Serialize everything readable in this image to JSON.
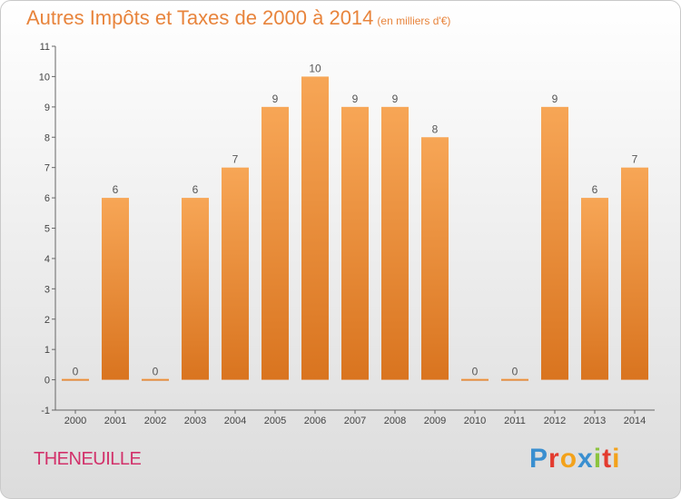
{
  "page": {
    "title": "Autres Impôts et Taxes de 2000 à 2014",
    "unit": "(en milliers d'€)",
    "commune": "THENEUILLE",
    "logo_letters": [
      "P",
      "r",
      "o",
      "x",
      "i",
      "t",
      "i"
    ]
  },
  "chart_data": {
    "type": "bar",
    "title": "Autres Impôts et Taxes de 2000 à 2014",
    "subtitle": "(en milliers d'€)",
    "xlabel": "",
    "ylabel": "",
    "categories": [
      "2000",
      "2001",
      "2002",
      "2003",
      "2004",
      "2005",
      "2006",
      "2007",
      "2008",
      "2009",
      "2010",
      "2011",
      "2012",
      "2013",
      "2014"
    ],
    "values": [
      0,
      6,
      0,
      6,
      7,
      9,
      10,
      9,
      9,
      8,
      0,
      0,
      9,
      6,
      7
    ],
    "data_labels": [
      "0",
      "6",
      "0",
      "6",
      "7",
      "9",
      "10",
      "9",
      "9",
      "8",
      "0",
      "0",
      "9",
      "6",
      "7"
    ],
    "yticks": [
      -1,
      0,
      1,
      2,
      3,
      4,
      5,
      6,
      7,
      8,
      9,
      10,
      11
    ],
    "ytick_labels": [
      "-1",
      "0",
      "1",
      "2",
      "3",
      "4",
      "5",
      "6",
      "7",
      "8",
      "9",
      "10",
      "11"
    ],
    "ylim": [
      -1,
      11
    ],
    "grid": false,
    "colors": {
      "bar_top": "#f7a656",
      "bar_bottom": "#d9741f",
      "axis": "#666666"
    }
  }
}
